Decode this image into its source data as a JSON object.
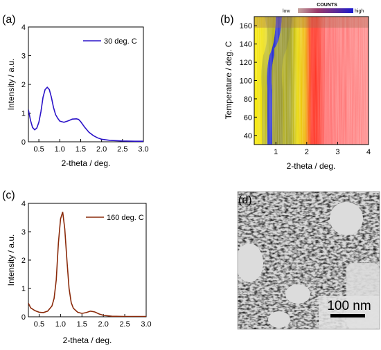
{
  "chart_data": [
    {
      "panel_label": "(a)",
      "type": "line",
      "xlabel": "2-theta / deg.",
      "ylabel": "Intensity / a.u.",
      "xlim": [
        0.25,
        3.0
      ],
      "ylim": [
        0,
        4
      ],
      "xticks": [
        "0.5",
        "1.0",
        "1.5",
        "2.0",
        "2.5",
        "3.0"
      ],
      "yticks": [
        "0",
        "1",
        "2",
        "3",
        "4"
      ],
      "legend_position": "top-right",
      "series": [
        {
          "name": "30 deg. C",
          "color": "#2a12c8",
          "x": [
            0.25,
            0.3,
            0.35,
            0.4,
            0.45,
            0.5,
            0.55,
            0.6,
            0.65,
            0.7,
            0.75,
            0.8,
            0.85,
            0.9,
            0.95,
            1.0,
            1.1,
            1.2,
            1.3,
            1.4,
            1.45,
            1.5,
            1.6,
            1.7,
            1.8,
            1.9,
            2.0,
            2.2,
            2.5,
            2.8,
            3.0
          ],
          "y": [
            1.12,
            0.75,
            0.5,
            0.42,
            0.48,
            0.68,
            1.05,
            1.55,
            1.82,
            1.9,
            1.82,
            1.55,
            1.2,
            0.95,
            0.82,
            0.72,
            0.68,
            0.73,
            0.79,
            0.8,
            0.78,
            0.7,
            0.5,
            0.33,
            0.22,
            0.14,
            0.09,
            0.05,
            0.03,
            0.02,
            0.02
          ]
        }
      ]
    },
    {
      "panel_label": "(b)",
      "type": "heatmap",
      "xlabel": "2-theta / deg.",
      "ylabel": "Temperature / deg. C",
      "xlim": [
        0.3,
        4.0
      ],
      "ylim": [
        30,
        170
      ],
      "xticks": [
        "1",
        "2",
        "3",
        "4"
      ],
      "yticks": [
        "40",
        "60",
        "80",
        "100",
        "120",
        "140",
        "160"
      ],
      "colorbar": {
        "title": "COUNTS",
        "low_label": "low",
        "high_label": "high",
        "position": "top",
        "colors": [
          "#c8a6a0",
          "#9a3a6a",
          "#5a2a9a",
          "#1a1ad0"
        ]
      },
      "color_stops": [
        "#ff8a8a",
        "#ff2a1a",
        "#f0b000",
        "#f8e800",
        "#9a9a20",
        "#1a28d8"
      ]
    },
    {
      "panel_label": "(c)",
      "type": "line",
      "xlabel": "2-theta / deg.",
      "ylabel": "Intensity / a.u.",
      "xlim": [
        0.25,
        3.0
      ],
      "ylim": [
        0,
        4
      ],
      "xticks": [
        "0.5",
        "1.0",
        "1.5",
        "2.0",
        "2.5",
        "3.0"
      ],
      "yticks": [
        "0",
        "1",
        "2",
        "3",
        "4"
      ],
      "legend_position": "top-right",
      "series": [
        {
          "name": "160 deg. C",
          "color": "#8a2a0a",
          "x": [
            0.25,
            0.3,
            0.4,
            0.5,
            0.6,
            0.7,
            0.8,
            0.85,
            0.9,
            0.95,
            1.0,
            1.05,
            1.1,
            1.15,
            1.2,
            1.25,
            1.3,
            1.4,
            1.5,
            1.6,
            1.7,
            1.8,
            1.9,
            2.0,
            2.2,
            2.5,
            3.0
          ],
          "y": [
            0.48,
            0.32,
            0.22,
            0.16,
            0.15,
            0.2,
            0.38,
            0.65,
            1.3,
            2.6,
            3.45,
            3.7,
            3.1,
            2.0,
            1.0,
            0.5,
            0.3,
            0.16,
            0.12,
            0.15,
            0.2,
            0.17,
            0.1,
            0.05,
            0.02,
            0.01,
            0.01
          ]
        }
      ]
    },
    {
      "panel_label": "(d)",
      "type": "image",
      "scale_bar": "100 nm"
    }
  ]
}
